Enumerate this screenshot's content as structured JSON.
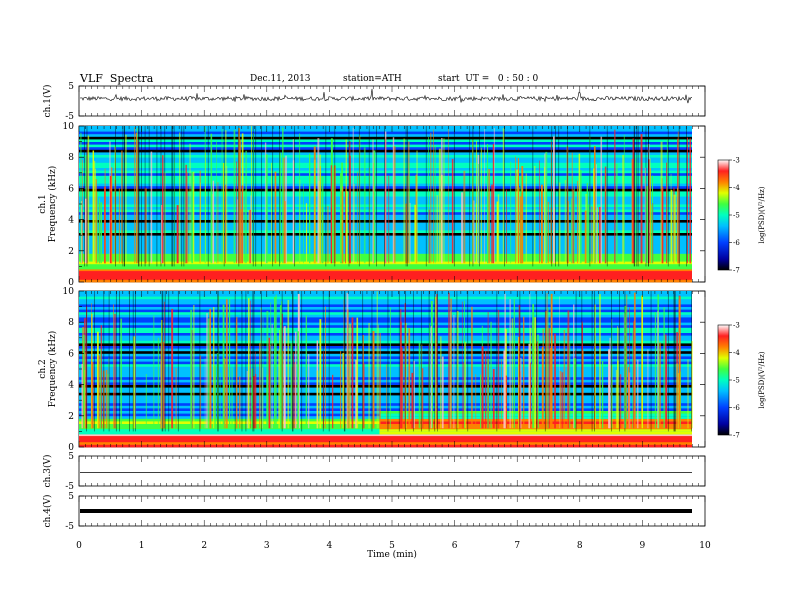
{
  "header": {
    "title": "VLF  Spectra",
    "date": "Dec.11, 2013",
    "station": "station=ATH",
    "start": "start  UT =   0 : 50 : 0"
  },
  "colors": {
    "ink": "#000000",
    "colormap": [
      "#000000",
      "#0000a0",
      "#0040ff",
      "#00c0ff",
      "#00ffc0",
      "#40ff40",
      "#e0ff00",
      "#ff8000",
      "#ff2020",
      "#ffc0c0",
      "#ffffff"
    ]
  },
  "chart_data": [
    {
      "type": "line",
      "panel": "ch1",
      "ylabel": "ch.1(V)",
      "ylim": [
        -5,
        5
      ],
      "yticks": [
        "5",
        "-5"
      ],
      "x": [
        0,
        10
      ],
      "series": [
        {
          "values": [
            0.8,
            0.8
          ]
        }
      ]
    },
    {
      "type": "heatmap",
      "panel": "spec1",
      "ylabel": "ch.1\nFrequency (kHz)",
      "ylim": [
        0,
        10
      ],
      "yticks": [
        "0",
        "2",
        "4",
        "6",
        "8",
        "10"
      ],
      "colorbar": {
        "label": "log(PSD)(V²/Hz)",
        "range": [
          -7,
          -3
        ],
        "ticks": [
          "-3",
          "-4",
          "-5",
          "-6",
          "-7"
        ]
      }
    },
    {
      "type": "heatmap",
      "panel": "spec2",
      "ylabel": "ch.2\nFrequency (kHz)",
      "ylim": [
        0,
        10
      ],
      "yticks": [
        "0",
        "2",
        "4",
        "6",
        "8",
        "10"
      ],
      "colorbar": {
        "label": "log(PSD)(V²/Hz)",
        "range": [
          -7,
          -3
        ],
        "ticks": [
          "-3",
          "-4",
          "-5",
          "-6",
          "-7"
        ]
      }
    },
    {
      "type": "line",
      "panel": "ch3",
      "ylabel": "ch.3(V)",
      "ylim": [
        -5,
        5
      ],
      "yticks": [
        "5",
        "-5"
      ],
      "x": [
        0,
        10
      ],
      "series": [
        {
          "values": [
            -0.5,
            -0.5
          ]
        }
      ]
    },
    {
      "type": "line",
      "panel": "ch4",
      "ylabel": "ch.4(V)",
      "ylim": [
        -5,
        5
      ],
      "yticks": [
        "5",
        "-5"
      ],
      "x": [
        0,
        10
      ],
      "series": [
        {
          "values": [
            0,
            0
          ]
        }
      ]
    },
    {
      "type": "axis",
      "xlabel": "Time  (min)",
      "xlim": [
        0,
        10
      ],
      "xticks": [
        "0",
        "1",
        "2",
        "3",
        "4",
        "5",
        "6",
        "7",
        "8",
        "9",
        "10"
      ]
    }
  ]
}
